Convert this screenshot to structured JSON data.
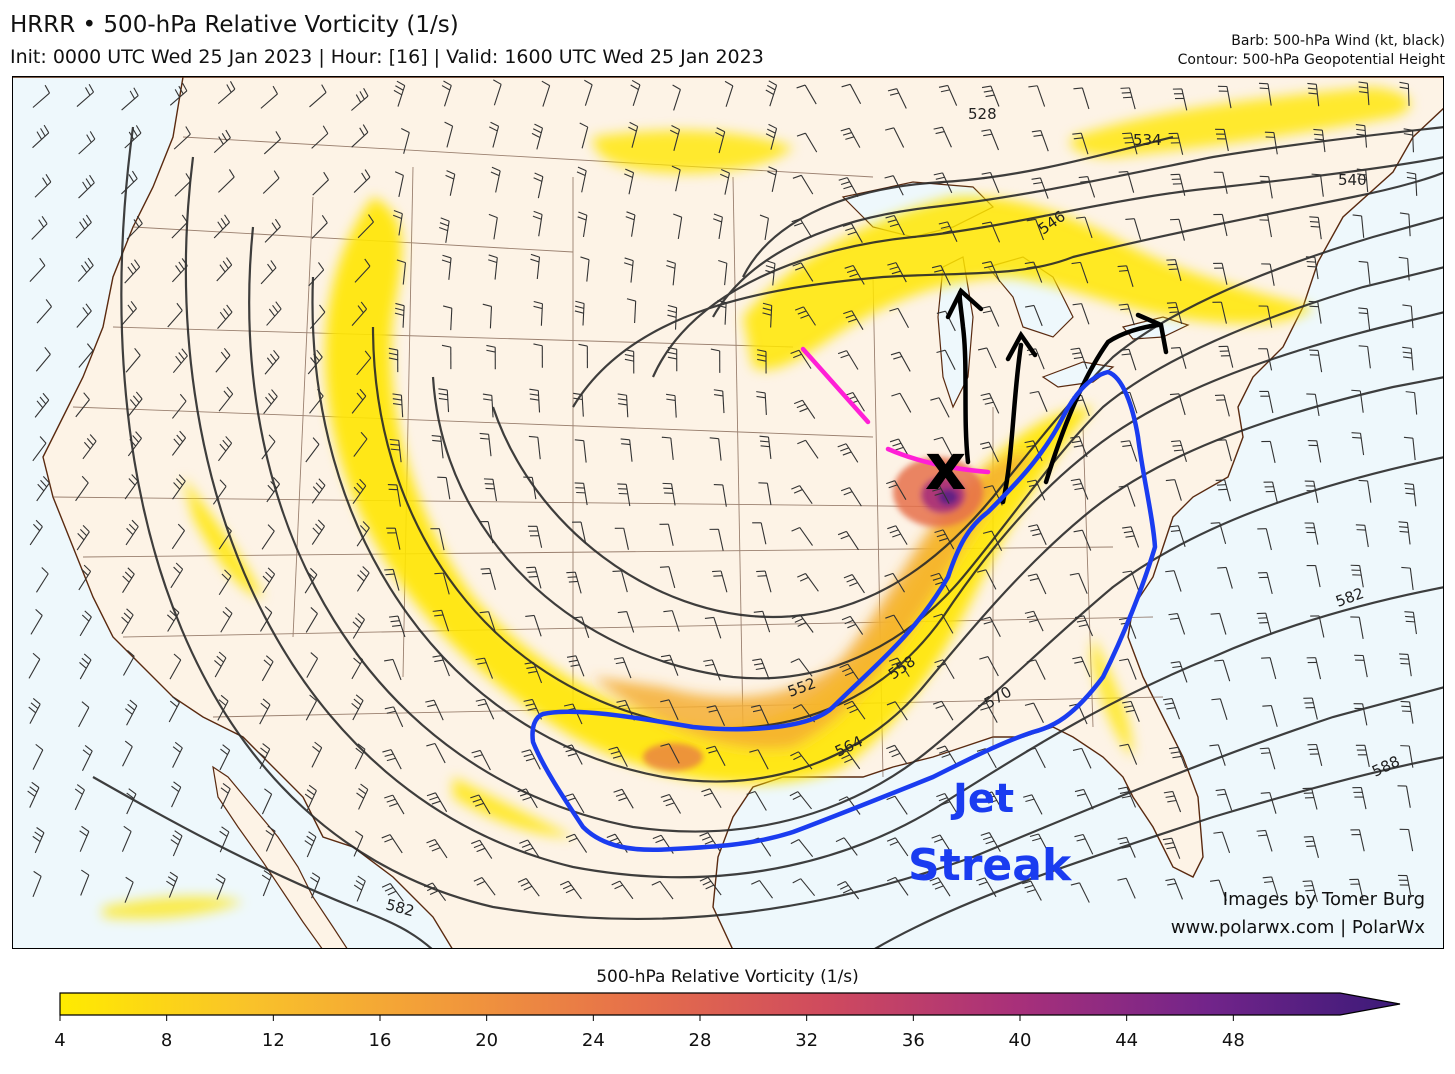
{
  "header": {
    "title": "HRRR • 500-hPa Relative Vorticity (1/s)",
    "subtitle": "Init: 0000 UTC Wed 25 Jan 2023 | Hour: [16] | Valid: 1600 UTC Wed 25 Jan 2023",
    "barb_legend": "Barb: 500-hPa Wind (kt, black)",
    "contour_legend": "Contour: 500-hPa Geopotential Height"
  },
  "map": {
    "contour_labels": [
      "528",
      "534",
      "540",
      "546",
      "552",
      "558",
      "564",
      "570",
      "582",
      "588",
      "582"
    ],
    "annotation": {
      "jet_line1": "Jet",
      "jet_line2": "Streak",
      "low_marker": "x"
    },
    "colors": {
      "land": "#fdf3e6",
      "ocean": "#eef8fc",
      "jet_outline": "#1a3cf0",
      "trough_axis": "#ff1fd6",
      "flow_arrows": "#000000"
    }
  },
  "credits": {
    "line1": "Images by Tomer Burg",
    "line2": "www.polarwx.com | PolarWx"
  },
  "colorbar": {
    "title": "500-hPa Relative Vorticity (1/s)",
    "ticks": [
      "4",
      "8",
      "12",
      "16",
      "20",
      "24",
      "28",
      "32",
      "36",
      "40",
      "44",
      "48"
    ],
    "tick_values": [
      4,
      8,
      12,
      16,
      20,
      24,
      28,
      32,
      36,
      40,
      44,
      48
    ],
    "range": [
      4,
      52
    ],
    "colors": [
      "#ffeb00",
      "#f9c22a",
      "#f29b3a",
      "#e6704a",
      "#cf4a5e",
      "#a8307a",
      "#72248a",
      "#3b1a78"
    ]
  }
}
